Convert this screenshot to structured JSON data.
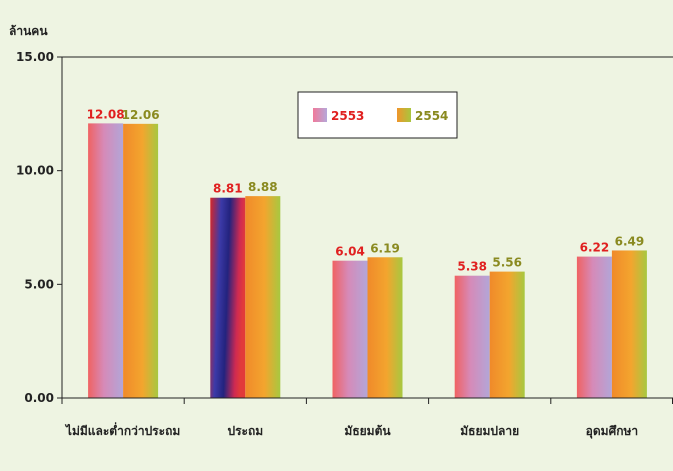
{
  "chart_data": {
    "type": "bar",
    "ylabel": "ล้านคน",
    "categories": [
      "ไม่มีและต่ำกว่าประถม",
      "ประถม",
      "มัธยมต้น",
      "มัธยมปลาย",
      "อุดมศึกษา"
    ],
    "series": [
      {
        "name": "2553",
        "values": [
          12.08,
          8.81,
          6.04,
          5.38,
          6.22
        ],
        "label_color": "#e02020"
      },
      {
        "name": "2554",
        "values": [
          12.06,
          8.88,
          6.19,
          5.56,
          6.49
        ],
        "label_color": "#8a8a20"
      }
    ],
    "value_labels": [
      [
        "12.08",
        "8.81",
        "6.04",
        "5.38",
        "6.22"
      ],
      [
        "12.06",
        "8.88",
        "6.19",
        "5.56",
        "6.49"
      ]
    ],
    "ylim": [
      0,
      15
    ],
    "yticks": [
      0,
      5,
      10,
      15
    ],
    "ytick_labels": [
      "0.00",
      "5.00",
      "10.00",
      "15.00"
    ],
    "grid": false,
    "legend_position": "top-center",
    "highlight": {
      "series": 0,
      "category": 1
    }
  }
}
